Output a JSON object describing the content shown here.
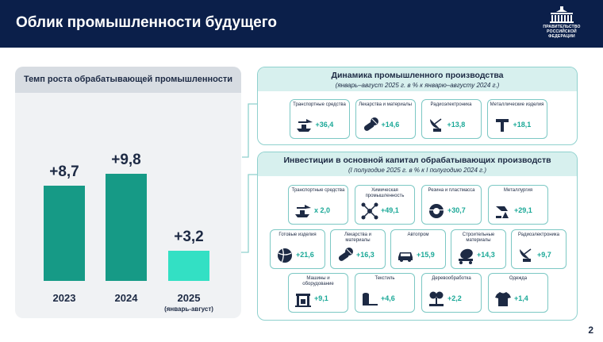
{
  "header": {
    "title": "Облик промышленности будущего",
    "logo_text": [
      "ПРАВИТЕЛЬСТВО",
      "РОССИЙСКОЙ",
      "ФЕДЕРАЦИИ"
    ]
  },
  "colors": {
    "header_bg": "#0b1f4a",
    "bar_dark": "#169a86",
    "bar_light": "#33e0c4",
    "accent": "#1aa897"
  },
  "chart_data": {
    "type": "bar",
    "title": "Темп роста обрабатывающей промышленности",
    "categories": [
      "2023",
      "2024",
      "2025"
    ],
    "category_notes": [
      "",
      "",
      "(январь-август)"
    ],
    "values": [
      8.7,
      9.8,
      3.2
    ],
    "value_labels": [
      "+8,7",
      "+9,8",
      "+3,2"
    ]
  },
  "production": {
    "title": "Динамика промышленного производства",
    "subtitle": "(январь–август 2025 г. в % к январю–августу 2024 г.)",
    "items": [
      {
        "label": "Транспортные средства",
        "value": "+36,4",
        "icon": "ship-plane-icon"
      },
      {
        "label": "Лекарства и материалы",
        "value": "+14,6",
        "icon": "pills-icon"
      },
      {
        "label": "Радиоэлектроника",
        "value": "+13,8",
        "icon": "satellite-dish-icon"
      },
      {
        "label": "Металлические изделия",
        "value": "+18,1",
        "icon": "metal-profile-icon"
      }
    ]
  },
  "investments": {
    "title": "Инвестиции в основной капитал обрабатывающих производств",
    "subtitle": "(I полугодие 2025 г. в % к I полугодию 2024 г.)",
    "row1": [
      {
        "label": "Транспортные средства",
        "value": "х 2,0",
        "icon": "ship-plane-icon"
      },
      {
        "label": "Химическая промышленность",
        "value": "+49,1",
        "icon": "molecule-icon"
      },
      {
        "label": "Резина и пластмасса",
        "value": "+30,7",
        "icon": "tire-icon"
      },
      {
        "label": "Металлургия",
        "value": "+29,1",
        "icon": "metallurgy-icon"
      }
    ],
    "row2": [
      {
        "label": "Готовые изделия",
        "value": "+21,6",
        "icon": "ball-icon"
      },
      {
        "label": "Лекарства и материалы",
        "value": "+16,3",
        "icon": "pills-icon"
      },
      {
        "label": "Автопром",
        "value": "+15,9",
        "icon": "car-icon"
      },
      {
        "label": "Строительные материалы",
        "value": "+14,3",
        "icon": "concrete-mixer-icon"
      },
      {
        "label": "Радиоэлектроника",
        "value": "+9,7",
        "icon": "satellite-dish-icon"
      }
    ],
    "row3": [
      {
        "label": "Машины и оборудование",
        "value": "+9,1",
        "icon": "machine-icon"
      },
      {
        "label": "Текстиль",
        "value": "+4,6",
        "icon": "fabric-roll-icon"
      },
      {
        "label": "Деревообработка",
        "value": "+2,2",
        "icon": "tree-saw-icon"
      },
      {
        "label": "Одежда",
        "value": "+1,4",
        "icon": "tshirt-icon"
      }
    ]
  },
  "page_number": "2"
}
